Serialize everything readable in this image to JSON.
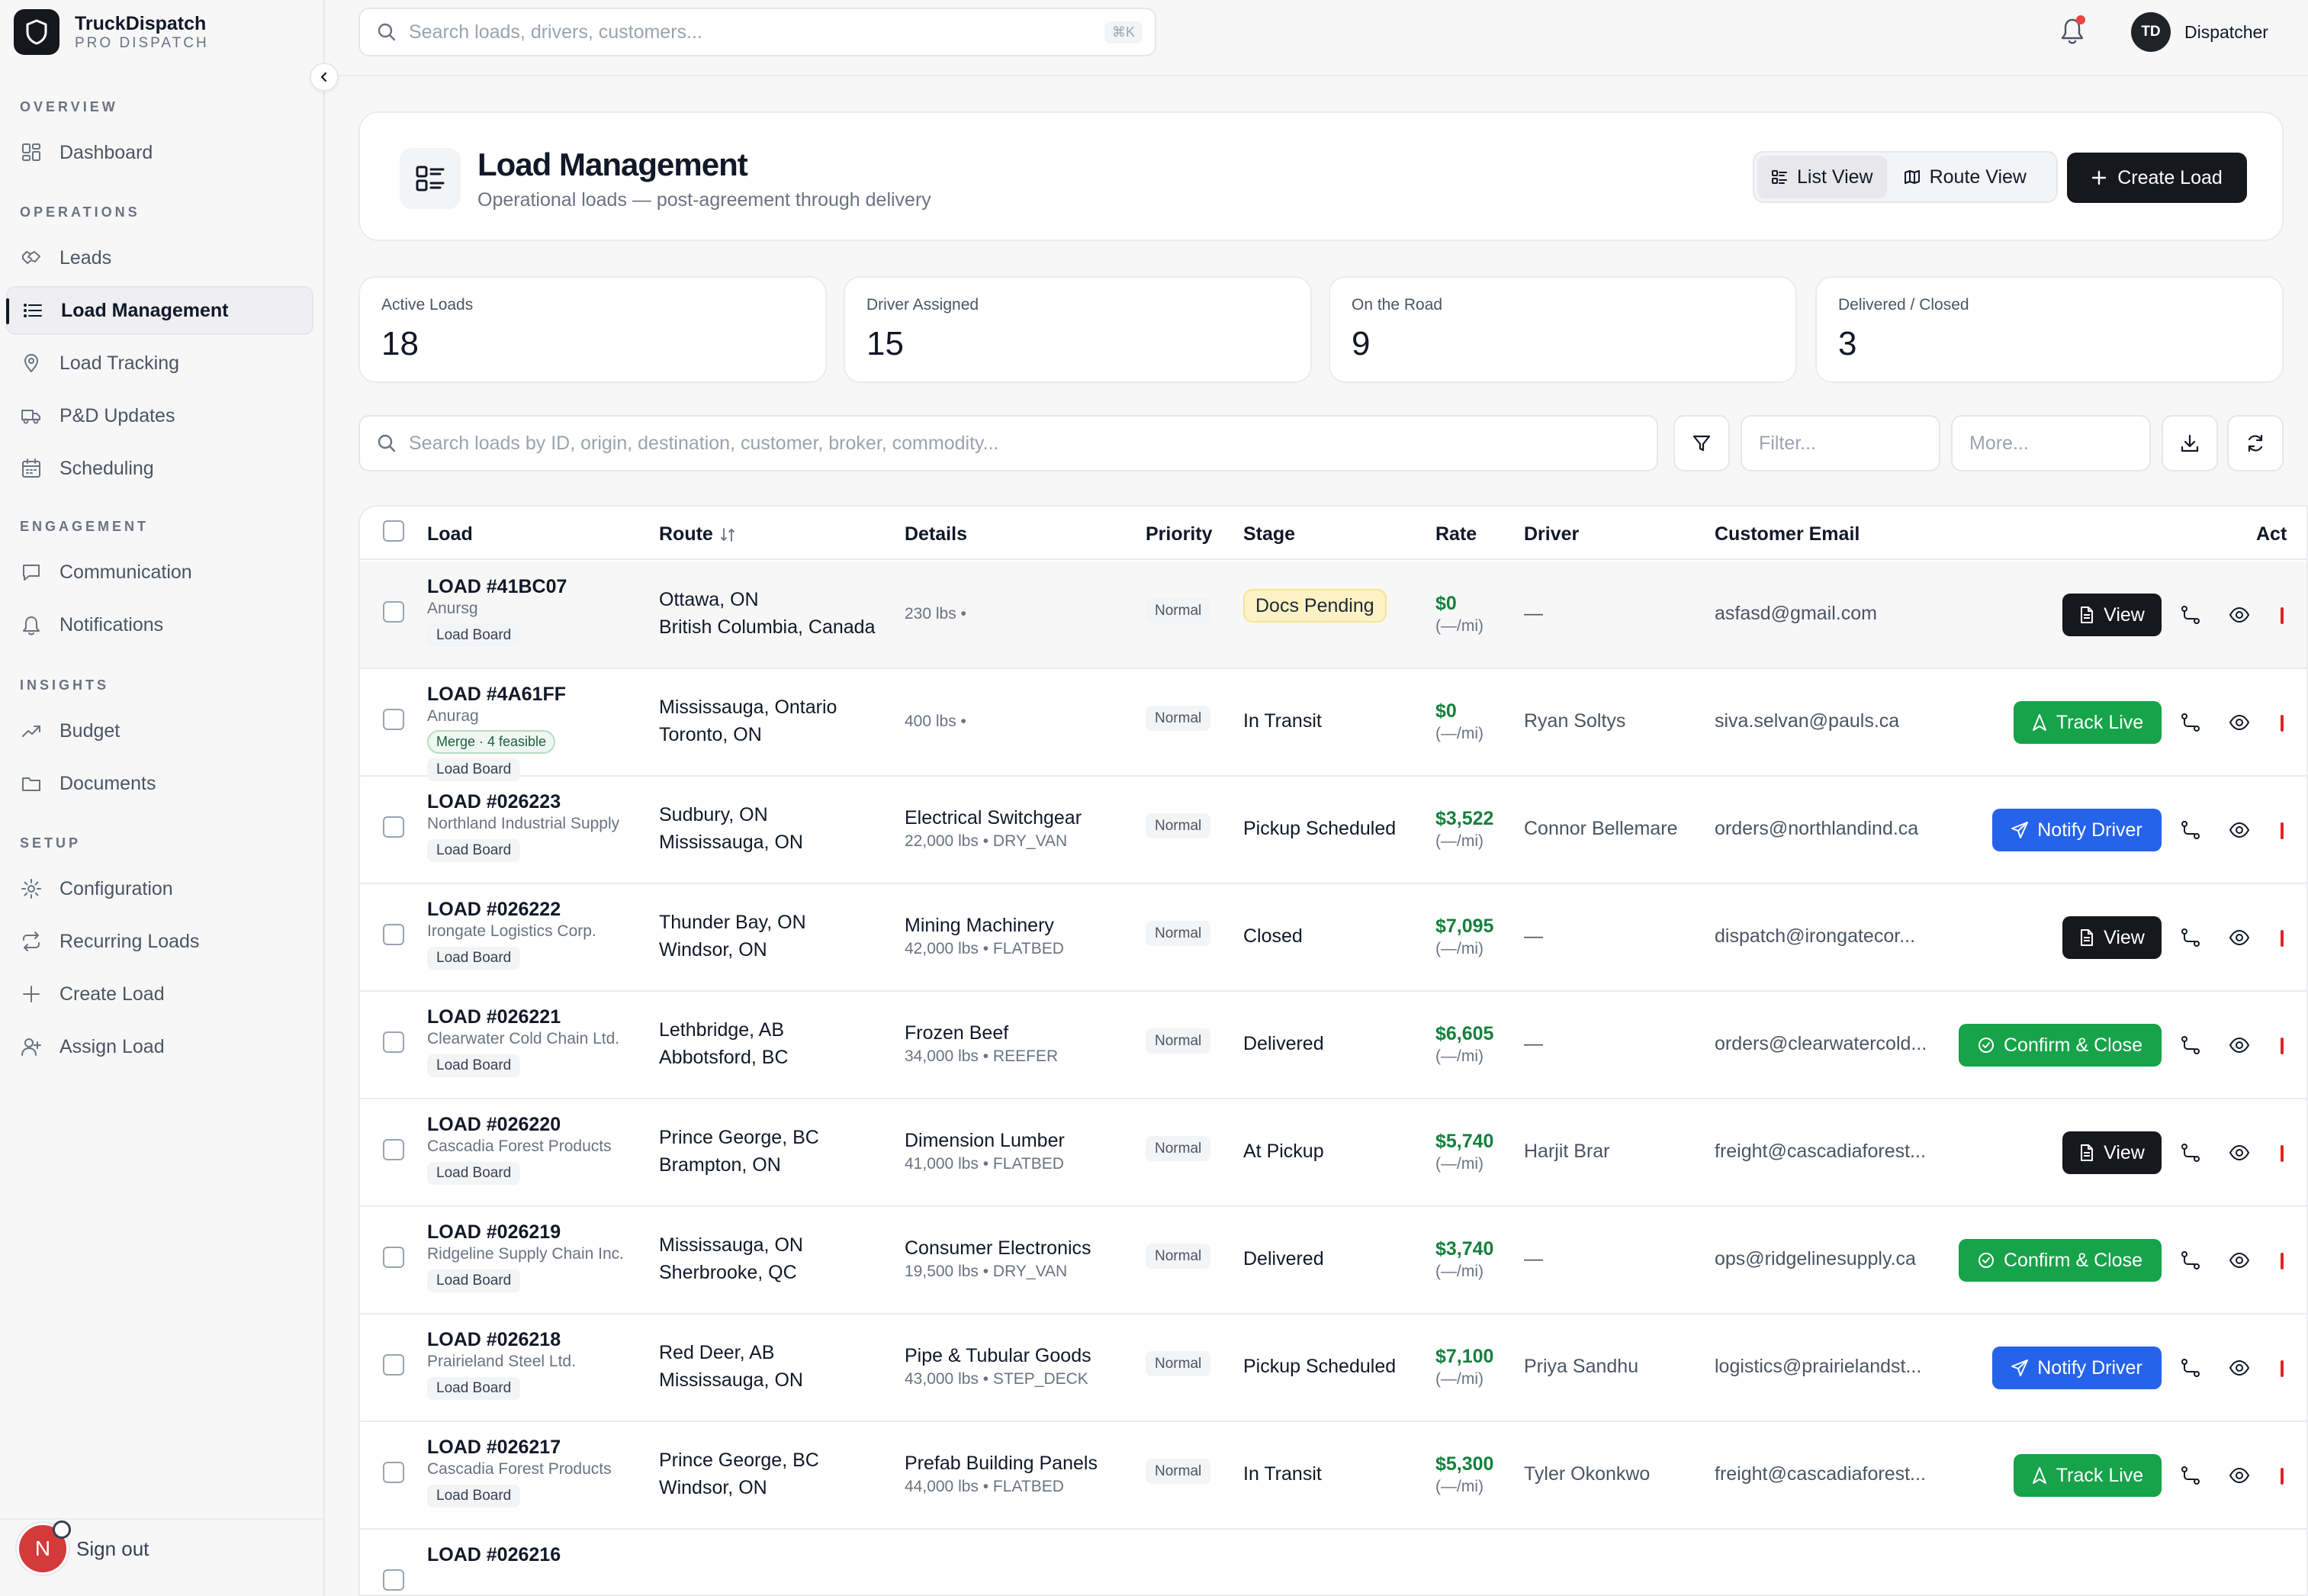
{
  "brand": {
    "name": "TruckDispatch",
    "subtitle": "PRO DISPATCH"
  },
  "sidebar": {
    "sections": [
      {
        "title": "OVERVIEW",
        "items": [
          {
            "label": "Dashboard",
            "icon": "dashboard-icon"
          }
        ]
      },
      {
        "title": "OPERATIONS",
        "items": [
          {
            "label": "Leads",
            "icon": "handshake-icon"
          },
          {
            "label": "Load Management",
            "icon": "list-icon",
            "active": true
          },
          {
            "label": "Load Tracking",
            "icon": "map-pin-icon"
          },
          {
            "label": "P&D Updates",
            "icon": "truck-icon"
          },
          {
            "label": "Scheduling",
            "icon": "calendar-icon"
          }
        ]
      },
      {
        "title": "ENGAGEMENT",
        "items": [
          {
            "label": "Communication",
            "icon": "message-icon"
          },
          {
            "label": "Notifications",
            "icon": "bell-icon"
          }
        ]
      },
      {
        "title": "INSIGHTS",
        "items": [
          {
            "label": "Budget",
            "icon": "trending-up-icon"
          },
          {
            "label": "Documents",
            "icon": "folder-icon"
          }
        ]
      },
      {
        "title": "SETUP",
        "items": [
          {
            "label": "Configuration",
            "icon": "gear-icon"
          },
          {
            "label": "Recurring Loads",
            "icon": "repeat-icon"
          },
          {
            "label": "Create Load",
            "icon": "plus-icon"
          },
          {
            "label": "Assign Load",
            "icon": "user-plus-icon"
          }
        ]
      }
    ],
    "footer": {
      "avatar_initial": "N",
      "signout_label": "Sign out"
    }
  },
  "topbar": {
    "search_placeholder": "Search loads, drivers, customers...",
    "shortcut": "⌘K",
    "user_initials": "TD",
    "user_role": "Dispatcher"
  },
  "header": {
    "title": "Load Management",
    "subtitle": "Operational loads — post-agreement through delivery",
    "list_view_label": "List View",
    "route_view_label": "Route View",
    "create_label": "Create Load"
  },
  "stats": [
    {
      "label": "Active Loads",
      "value": "18"
    },
    {
      "label": "Driver Assigned",
      "value": "15"
    },
    {
      "label": "On the Road",
      "value": "9"
    },
    {
      "label": "Delivered / Closed",
      "value": "3"
    }
  ],
  "filters": {
    "search_placeholder": "Search loads by ID, origin, destination, customer, broker, commodity...",
    "filter_placeholder": "Filter...",
    "more_placeholder": "More..."
  },
  "table": {
    "columns": [
      "Load",
      "Route",
      "Details",
      "Priority",
      "Stage",
      "Rate",
      "Driver",
      "Customer Email",
      "Act"
    ],
    "rows": [
      {
        "id": "LOAD #41BC07",
        "customer": "Anursg",
        "source": "Load Board",
        "origin": "Ottawa, ON",
        "destination": "British Columbia, Canada",
        "commodity": "",
        "weight": "230 lbs •",
        "priority": "Normal",
        "stage": "Docs Pending",
        "stage_pill": true,
        "rate": "$0",
        "per_mile": "(—/mi)",
        "driver": "—",
        "email": "asfasd@gmail.com",
        "action": "View",
        "action_type": "view"
      },
      {
        "id": "LOAD #4A61FF",
        "customer": "Anurag",
        "merge": "Merge · 4 feasible",
        "source": "Load Board",
        "origin": "Mississauga, Ontario",
        "destination": "Toronto, ON",
        "commodity": "",
        "weight": "400 lbs •",
        "priority": "Normal",
        "stage": "In Transit",
        "rate": "$0",
        "per_mile": "(—/mi)",
        "driver": "Ryan Soltys",
        "email": "siva.selvan@pauls.ca",
        "action": "Track Live",
        "action_type": "track"
      },
      {
        "id": "LOAD #026223",
        "customer": "Northland Industrial Supply",
        "source": "Load Board",
        "origin": "Sudbury, ON",
        "destination": "Mississauga, ON",
        "commodity": "Electrical Switchgear",
        "weight": "22,000 lbs • DRY_VAN",
        "priority": "Normal",
        "stage": "Pickup Scheduled",
        "rate": "$3,522",
        "per_mile": "(—/mi)",
        "driver": "Connor Bellemare",
        "email": "orders@northlandind.ca",
        "action": "Notify Driver",
        "action_type": "notify"
      },
      {
        "id": "LOAD #026222",
        "customer": "Irongate Logistics Corp.",
        "source": "Load Board",
        "origin": "Thunder Bay, ON",
        "destination": "Windsor, ON",
        "commodity": "Mining Machinery",
        "weight": "42,000 lbs • FLATBED",
        "priority": "Normal",
        "stage": "Closed",
        "rate": "$7,095",
        "per_mile": "(—/mi)",
        "driver": "—",
        "email": "dispatch@irongatecor...",
        "action": "View",
        "action_type": "view"
      },
      {
        "id": "LOAD #026221",
        "customer": "Clearwater Cold Chain Ltd.",
        "source": "Load Board",
        "origin": "Lethbridge, AB",
        "destination": "Abbotsford, BC",
        "commodity": "Frozen Beef",
        "weight": "34,000 lbs • REEFER",
        "priority": "Normal",
        "stage": "Delivered",
        "rate": "$6,605",
        "per_mile": "(—/mi)",
        "driver": "—",
        "email": "orders@clearwatercold...",
        "action": "Confirm & Close",
        "action_type": "confirm"
      },
      {
        "id": "LOAD #026220",
        "customer": "Cascadia Forest Products",
        "source": "Load Board",
        "origin": "Prince George, BC",
        "destination": "Brampton, ON",
        "commodity": "Dimension Lumber",
        "weight": "41,000 lbs • FLATBED",
        "priority": "Normal",
        "stage": "At Pickup",
        "rate": "$5,740",
        "per_mile": "(—/mi)",
        "driver": "Harjit Brar",
        "email": "freight@cascadiaforest...",
        "action": "View",
        "action_type": "view"
      },
      {
        "id": "LOAD #026219",
        "customer": "Ridgeline Supply Chain Inc.",
        "source": "Load Board",
        "origin": "Mississauga, ON",
        "destination": "Sherbrooke, QC",
        "commodity": "Consumer Electronics",
        "weight": "19,500 lbs • DRY_VAN",
        "priority": "Normal",
        "stage": "Delivered",
        "rate": "$3,740",
        "per_mile": "(—/mi)",
        "driver": "—",
        "email": "ops@ridgelinesupply.ca",
        "action": "Confirm & Close",
        "action_type": "confirm"
      },
      {
        "id": "LOAD #026218",
        "customer": "Prairieland Steel Ltd.",
        "source": "Load Board",
        "origin": "Red Deer, AB",
        "destination": "Mississauga, ON",
        "commodity": "Pipe & Tubular Goods",
        "weight": "43,000 lbs • STEP_DECK",
        "priority": "Normal",
        "stage": "Pickup Scheduled",
        "rate": "$7,100",
        "per_mile": "(—/mi)",
        "driver": "Priya Sandhu",
        "email": "logistics@prairielandst...",
        "action": "Notify Driver",
        "action_type": "notify"
      },
      {
        "id": "LOAD #026217",
        "customer": "Cascadia Forest Products",
        "source": "Load Board",
        "origin": "Prince George, BC",
        "destination": "Windsor, ON",
        "commodity": "Prefab Building Panels",
        "weight": "44,000 lbs • FLATBED",
        "priority": "Normal",
        "stage": "In Transit",
        "rate": "$5,300",
        "per_mile": "(—/mi)",
        "driver": "Tyler Okonkwo",
        "email": "freight@cascadiaforest...",
        "action": "Track Live",
        "action_type": "track"
      },
      {
        "id": "LOAD #026216"
      }
    ]
  },
  "colors": {
    "accent_dark": "#16181d",
    "green": "#16a34a",
    "blue": "#2563eb",
    "amber_pill": "#fdf2c4"
  }
}
